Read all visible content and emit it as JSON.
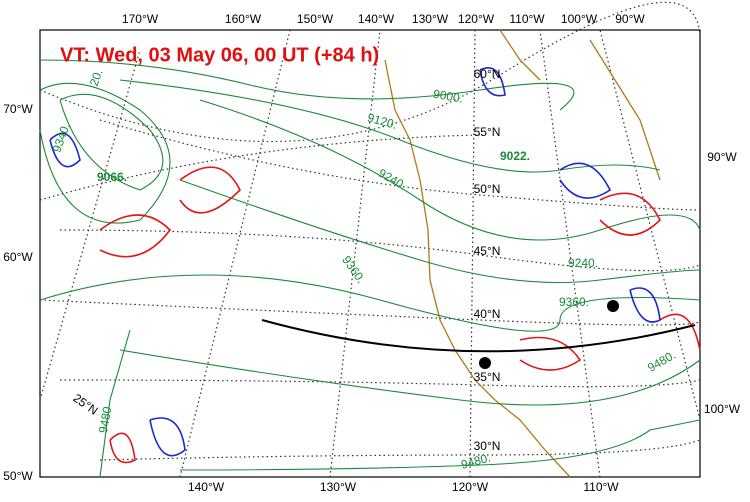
{
  "title": "VT:  Wed, 03 May 06, 00 UT (+84 h)",
  "top_labels": [
    "170°W",
    "160°W",
    "150°W",
    "140°W",
    "130°W",
    "120°W",
    "110°W",
    "100°W",
    "90°W"
  ],
  "bottom_labels": [
    "140°W",
    "130°W",
    "120°W",
    "110°W"
  ],
  "left_labels": [
    "70°W",
    "60°W",
    "50°W"
  ],
  "right_labels": [
    "90°W",
    "100°W"
  ],
  "latitude_labels": [
    "60°N",
    "55°N",
    "50°N",
    "45°N",
    "40°N",
    "35°N",
    "30°N",
    "25°N"
  ],
  "contour_labels": [
    "9000.",
    "9120.",
    "9240.",
    "9360.",
    "9340.",
    "20.",
    "9240.",
    "9360.",
    "9480.",
    "9480.",
    "9480"
  ],
  "extrema_labels": [
    "9022.",
    "9066."
  ]
}
